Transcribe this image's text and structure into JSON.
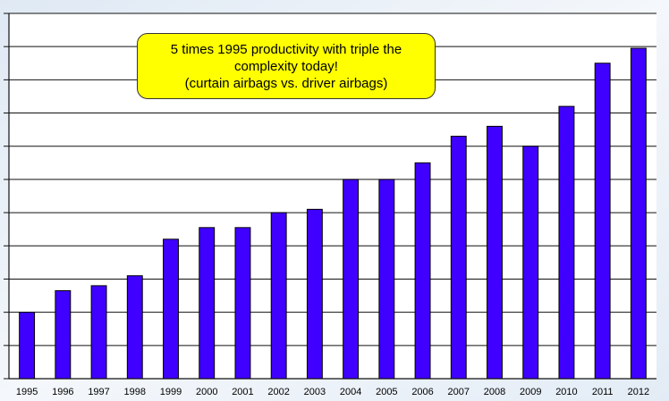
{
  "chart_data": {
    "type": "bar",
    "categories": [
      "1995",
      "1996",
      "1997",
      "1998",
      "1999",
      "2000",
      "2001",
      "2002",
      "2003",
      "2004",
      "2005",
      "2006",
      "2007",
      "2008",
      "2009",
      "2010",
      "2011",
      "2012"
    ],
    "values": [
      2.0,
      2.65,
      2.8,
      3.1,
      4.2,
      4.55,
      4.55,
      5.0,
      5.1,
      6.0,
      6.0,
      6.5,
      7.3,
      7.6,
      7.0,
      8.2,
      9.5,
      9.95
    ],
    "ylim": [
      0,
      11
    ],
    "grid": true,
    "bar_color": "#3f00ff",
    "annotation": {
      "line1": "5 times 1995 productivity with triple the",
      "line2": "complexity today!",
      "line3": "(curtain airbags vs. driver airbags)",
      "background": "#ffff00"
    }
  }
}
